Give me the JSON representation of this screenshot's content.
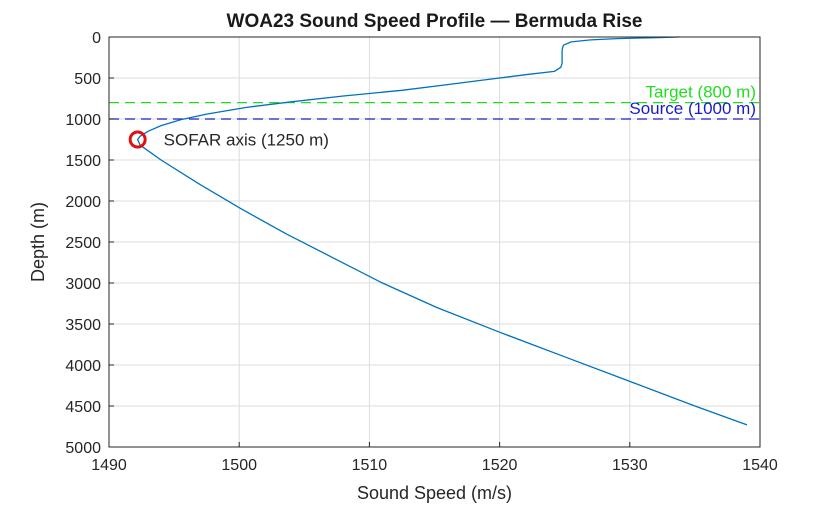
{
  "chart_data": {
    "type": "line",
    "title": "WOA23 Sound Speed Profile — Bermuda Rise",
    "xlabel": "Sound Speed (m/s)",
    "ylabel": "Depth (m)",
    "xlim": [
      1490,
      1540
    ],
    "ylim": [
      0,
      5000
    ],
    "y_reversed": true,
    "grid": true,
    "xticks": [
      1490,
      1500,
      1510,
      1520,
      1530,
      1540
    ],
    "yticks": [
      0,
      500,
      1000,
      1500,
      2000,
      2500,
      3000,
      3500,
      4000,
      4500,
      5000
    ],
    "series": [
      {
        "color": "#0072BD",
        "points": [
          [
            1533.8,
            0
          ],
          [
            1531.5,
            10
          ],
          [
            1529.0,
            20
          ],
          [
            1527.0,
            35
          ],
          [
            1525.5,
            60
          ],
          [
            1524.9,
            100
          ],
          [
            1524.8,
            160
          ],
          [
            1524.8,
            240
          ],
          [
            1524.8,
            320
          ],
          [
            1524.7,
            370
          ],
          [
            1524.2,
            420
          ],
          [
            1522.0,
            460
          ],
          [
            1519.0,
            520
          ],
          [
            1516.0,
            580
          ],
          [
            1512.5,
            650
          ],
          [
            1508.0,
            720
          ],
          [
            1504.0,
            790
          ],
          [
            1500.5,
            860
          ],
          [
            1497.5,
            940
          ],
          [
            1495.5,
            1010
          ],
          [
            1494.0,
            1080
          ],
          [
            1493.0,
            1150
          ],
          [
            1492.4,
            1210
          ],
          [
            1492.2,
            1250
          ],
          [
            1492.4,
            1320
          ],
          [
            1494.0,
            1500
          ],
          [
            1497.0,
            1800
          ],
          [
            1500.2,
            2100
          ],
          [
            1503.6,
            2400
          ],
          [
            1507.3,
            2700
          ],
          [
            1511.0,
            3000
          ],
          [
            1515.2,
            3300
          ],
          [
            1520.0,
            3600
          ],
          [
            1525.0,
            3900
          ],
          [
            1530.0,
            4200
          ],
          [
            1535.0,
            4500
          ],
          [
            1539.0,
            4730
          ]
        ]
      }
    ],
    "reference_lines": [
      {
        "label": "Target (800 m)",
        "depth": 800,
        "color": "#22dd22"
      },
      {
        "label": "Source (1000 m)",
        "depth": 1000,
        "color": "#1a1acc"
      }
    ],
    "annotations": [
      {
        "label": "SOFAR axis (1250 m)",
        "x": 1492.2,
        "depth": 1250,
        "marker": "circle",
        "color": "#e01010"
      }
    ]
  }
}
